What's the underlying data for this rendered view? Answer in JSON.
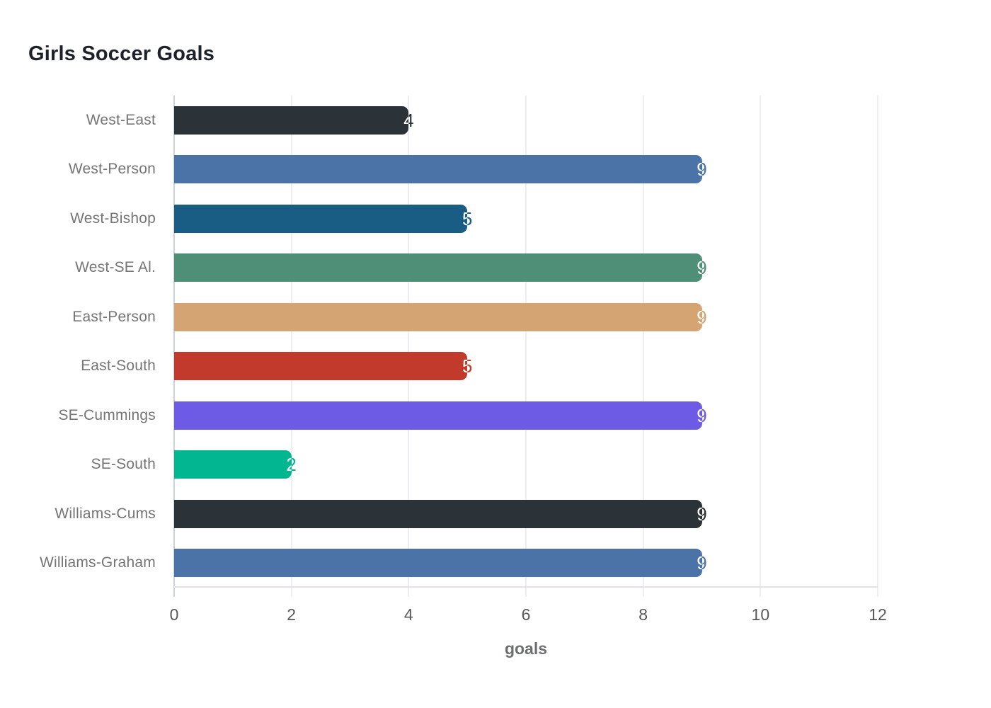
{
  "title": "Girls Soccer Goals",
  "xlabel": "goals",
  "chart_data": {
    "type": "bar",
    "orientation": "horizontal",
    "title": "Girls Soccer Goals",
    "xlabel": "goals",
    "ylabel": "",
    "categories": [
      "West-East",
      "West-Person",
      "West-Bishop",
      "West-SE Al.",
      "East-Person",
      "East-South",
      "SE-Cummings",
      "SE-South",
      "Williams-Cums",
      "Williams-Graham"
    ],
    "values": [
      4,
      9,
      5,
      9,
      9,
      5,
      9,
      2,
      9,
      9
    ],
    "bar_colors": [
      "#2b3338",
      "#4c73a8",
      "#1a5d84",
      "#4f8f78",
      "#d4a473",
      "#c13a2c",
      "#6d5be6",
      "#02b692",
      "#2b3338",
      "#4c73a8"
    ],
    "xlim": [
      0,
      12
    ],
    "xticks": [
      0,
      2,
      4,
      6,
      8,
      10,
      12
    ],
    "grid": "vertical",
    "legend": false,
    "value_labels": "at-bar-end"
  },
  "colors": {
    "background": "#ffffff",
    "title_text": "#1d2129",
    "category_label": "#757575",
    "tick_label": "#58595b",
    "axis_title": "#6d6e70",
    "gridline": "#ededf2",
    "zero_line": "#cbd1d8",
    "axis_line": "#e1e2e8"
  }
}
